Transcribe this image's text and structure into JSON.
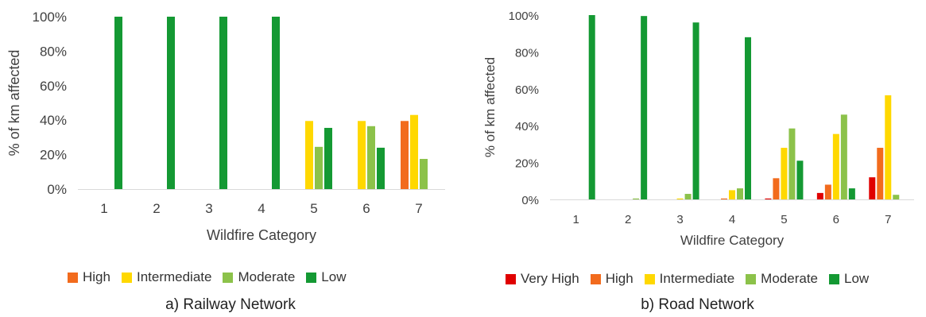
{
  "colors": {
    "Very High": "#e00000",
    "High": "#f26b1d",
    "Intermediate": "#ffd800",
    "Moderate": "#8cc24a",
    "Low": "#149933",
    "axis": "#d9d9d9",
    "text": "#404040"
  },
  "chart_data": [
    {
      "type": "bar",
      "caption": "a) Railway Network",
      "xlabel": "Wildfire Category",
      "ylabel": "% of km affected",
      "ylim": [
        0,
        100
      ],
      "yticks": [
        "0%",
        "20%",
        "40%",
        "60%",
        "80%",
        "100%"
      ],
      "grid": false,
      "legend_position": "bottom",
      "categories": [
        "1",
        "2",
        "3",
        "4",
        "5",
        "6",
        "7"
      ],
      "series": [
        {
          "name": "High",
          "values": [
            0,
            0,
            0,
            0,
            0,
            0,
            39.5
          ]
        },
        {
          "name": "Intermediate",
          "values": [
            0,
            0,
            0,
            0,
            39.5,
            39.5,
            43
          ]
        },
        {
          "name": "Moderate",
          "values": [
            0,
            0,
            0,
            0,
            24.5,
            36.5,
            17.5
          ]
        },
        {
          "name": "Low",
          "values": [
            100,
            100,
            100,
            100,
            35.5,
            24,
            0
          ]
        }
      ]
    },
    {
      "type": "bar",
      "caption": "b) Road Network",
      "xlabel": "Wildfire Category",
      "ylabel": "% of km affected",
      "ylim": [
        0,
        100
      ],
      "yticks": [
        "0%",
        "20%",
        "40%",
        "60%",
        "80%",
        "100%"
      ],
      "grid": false,
      "legend_position": "bottom",
      "categories": [
        "1",
        "2",
        "3",
        "4",
        "5",
        "6",
        "7"
      ],
      "series": [
        {
          "name": "Very High",
          "values": [
            0,
            0,
            0,
            0,
            0.5,
            3.5,
            12
          ]
        },
        {
          "name": "High",
          "values": [
            0,
            0,
            0,
            0.5,
            11.5,
            8,
            28
          ]
        },
        {
          "name": "Intermediate",
          "values": [
            0,
            0,
            0.5,
            5,
            28,
            35.5,
            56.5
          ]
        },
        {
          "name": "Moderate",
          "values": [
            0,
            0.5,
            3,
            6,
            38.5,
            46,
            2.5
          ]
        },
        {
          "name": "Low",
          "values": [
            100,
            99.5,
            96,
            88,
            21,
            6,
            0
          ]
        }
      ]
    }
  ]
}
